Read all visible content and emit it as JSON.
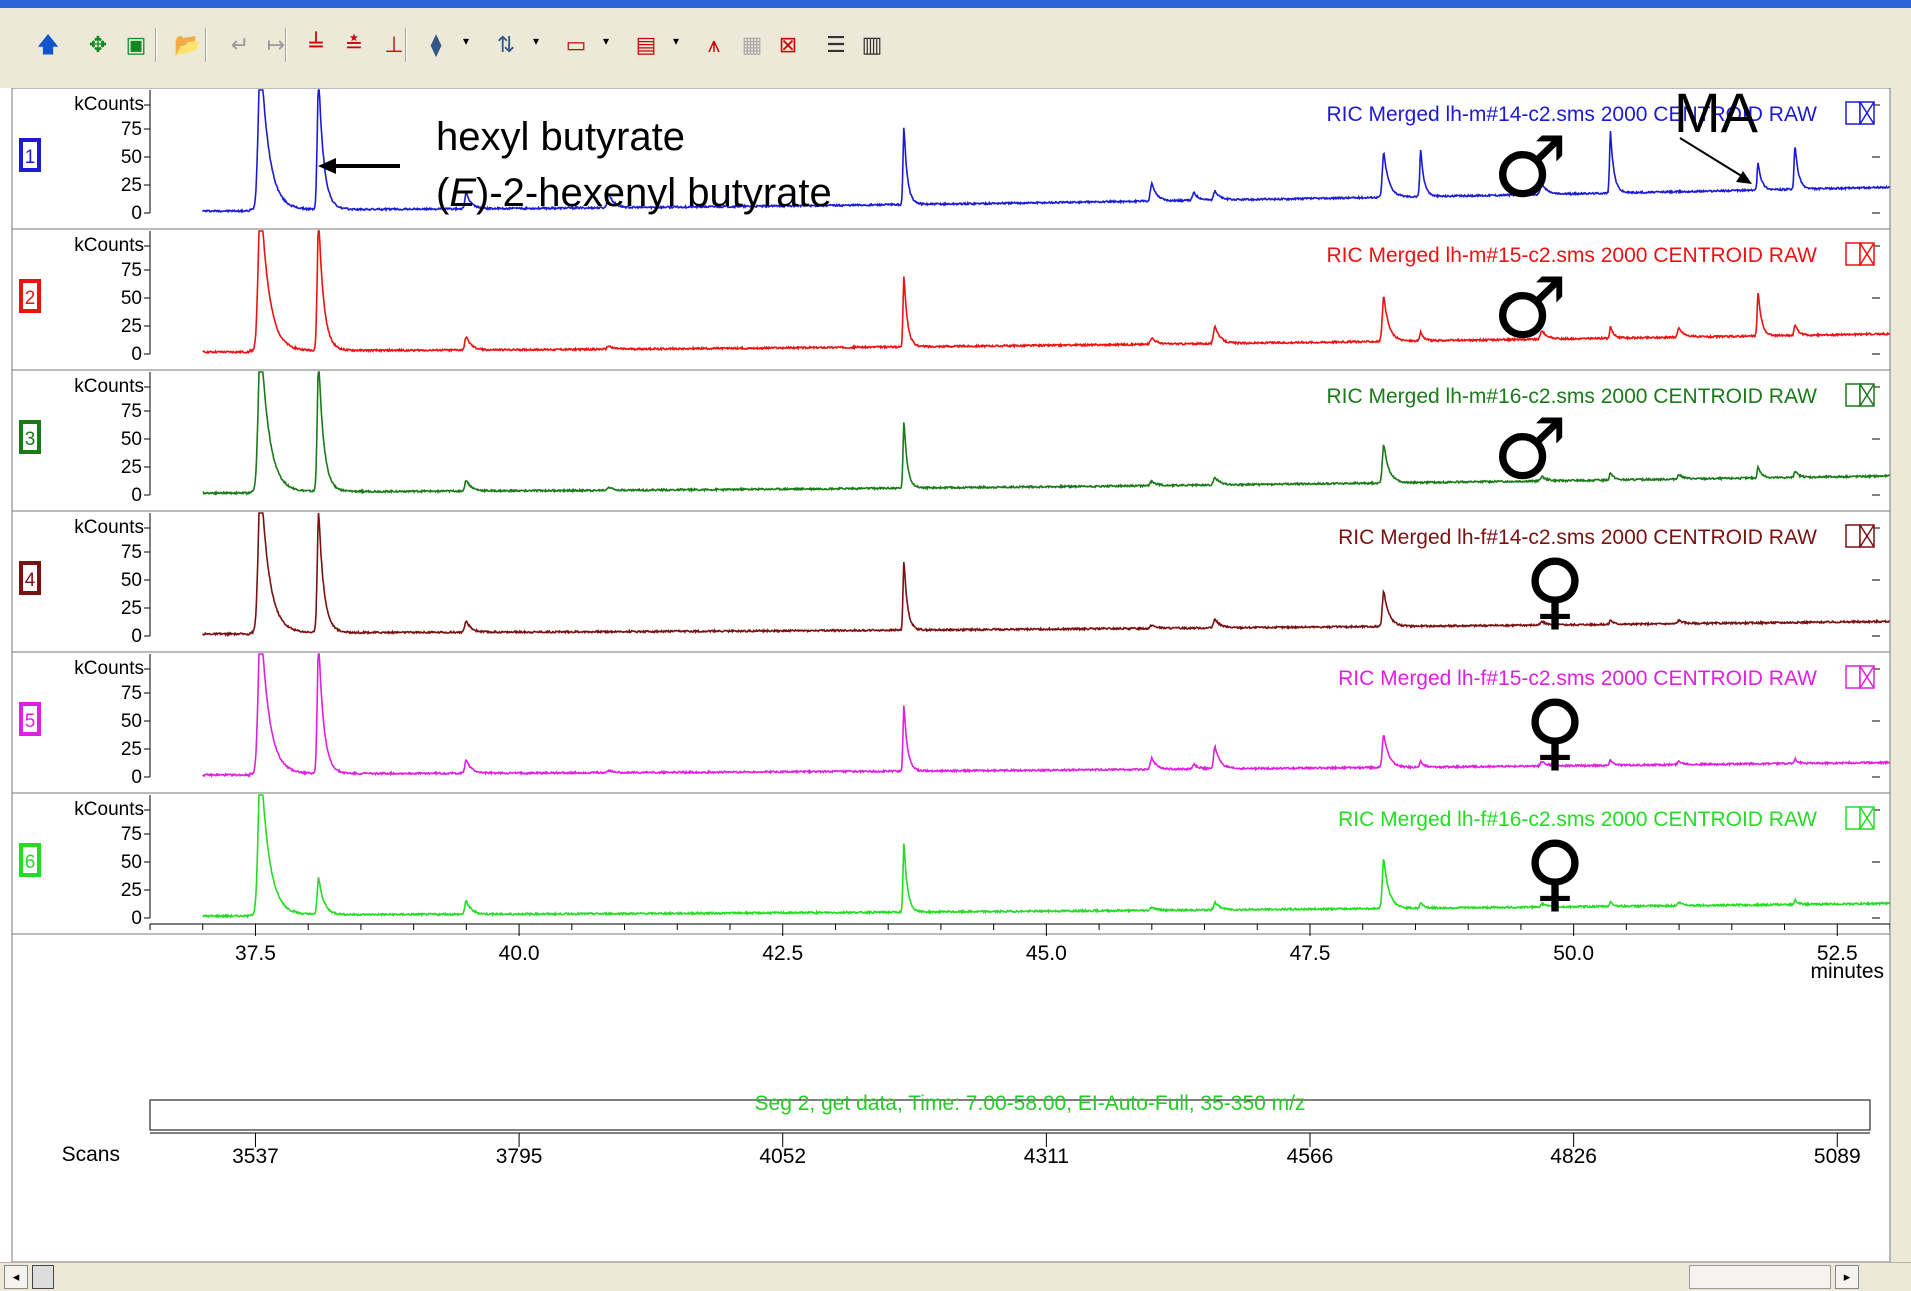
{
  "toolbar": {
    "buttons": [
      {
        "icon": "up-arrow-icon",
        "glyph": "🡅",
        "color": "#1155cc",
        "drop": false
      },
      {
        "icon": "move-icon",
        "glyph": "✥",
        "color": "#118822",
        "drop": false
      },
      {
        "icon": "zoom-box-icon",
        "glyph": "▣",
        "color": "#118822",
        "drop": false
      },
      {
        "icon": "open-folder-icon",
        "glyph": "📂",
        "color": "#cc9900",
        "drop": false
      },
      {
        "icon": "undo-icon",
        "glyph": "↵",
        "color": "#999999",
        "drop": false
      },
      {
        "icon": "redo-icon",
        "glyph": "↦",
        "color": "#999999",
        "drop": false
      },
      {
        "icon": "peak-marker-icon",
        "glyph": "╧",
        "color": "#cc0000",
        "drop": false
      },
      {
        "icon": "baseline-icon",
        "glyph": "≛",
        "color": "#cc0000",
        "drop": false
      },
      {
        "icon": "integrate-icon",
        "glyph": "⊥",
        "color": "#cc0000",
        "drop": false
      },
      {
        "icon": "probe-icon",
        "glyph": "⧫",
        "color": "#335588",
        "drop": true
      },
      {
        "icon": "spectrum-icon",
        "glyph": "⇅",
        "color": "#335588",
        "drop": true
      },
      {
        "icon": "scale-icon",
        "glyph": "▭",
        "color": "#cc0000",
        "drop": true
      },
      {
        "icon": "overlay-icon",
        "glyph": "▤",
        "color": "#cc0000",
        "drop": true
      },
      {
        "icon": "peak-icon",
        "glyph": "⩚",
        "color": "#cc0000",
        "drop": false
      },
      {
        "icon": "grid-icon",
        "glyph": "▦",
        "color": "#aaaaaa",
        "drop": false
      },
      {
        "icon": "no-zoom-icon",
        "glyph": "⊠",
        "color": "#cc0000",
        "drop": false
      },
      {
        "icon": "list-icon",
        "glyph": "☰",
        "color": "#333333",
        "drop": false
      },
      {
        "icon": "table-icon",
        "glyph": "▥",
        "color": "#333333",
        "drop": false
      }
    ]
  },
  "chart_data": {
    "type": "line",
    "x_unit": "minutes",
    "xlim": [
      36.5,
      53.0
    ],
    "x_ticks": [
      "37.5",
      "40.0",
      "42.5",
      "45.0",
      "47.5",
      "50.0",
      "52.5"
    ],
    "x_tick_values": [
      37.5,
      40.0,
      42.5,
      45.0,
      47.5,
      50.0,
      52.5
    ],
    "y_unit": "kCounts",
    "y_ticks": [
      "75",
      "50",
      "25",
      "0"
    ],
    "y_tick_values": [
      75,
      50,
      25,
      0
    ],
    "ylim": [
      0,
      105
    ],
    "segment_label": "Seg 2, get data, Time:  7.00-58.00, EI-Auto-Full, 35-350 m/z",
    "scans_label": "Scans",
    "scan_ticks": [
      "3537",
      "3795",
      "4052",
      "4311",
      "4566",
      "4826",
      "5089"
    ],
    "scan_tick_x": [
      37.5,
      40.0,
      42.5,
      45.0,
      47.5,
      50.0,
      52.5
    ],
    "annotation": {
      "line1": "hexyl butyrate",
      "line2_pre": "(",
      "line2_italic": "E",
      "line2_post": ")-2-hexenyl butyrate"
    },
    "ma_label": "MA",
    "male_symbol": "♂",
    "female_symbol": "♀",
    "series": [
      {
        "panel": "1",
        "name": "RIC Merged lh-m#14-c2.sms  2000 CENTROID RAW",
        "color": "#1b1bd6",
        "sex": "male",
        "baseline": 3,
        "drift": 20,
        "peaks": [
          [
            37.55,
            140,
            0.05
          ],
          [
            38.1,
            120,
            0.03
          ],
          [
            39.5,
            14,
            0.03
          ],
          [
            40.85,
            13,
            0.03
          ],
          [
            43.65,
            70,
            0.02
          ],
          [
            46.0,
            16,
            0.03
          ],
          [
            46.4,
            7,
            0.03
          ],
          [
            46.6,
            8,
            0.03
          ],
          [
            48.2,
            40,
            0.03
          ],
          [
            48.55,
            42,
            0.02
          ],
          [
            49.7,
            10,
            0.03
          ],
          [
            50.35,
            55,
            0.02
          ],
          [
            51.75,
            25,
            0.02
          ],
          [
            52.1,
            40,
            0.02
          ]
        ]
      },
      {
        "panel": "2",
        "name": "RIC Merged lh-m#15-c2.sms  2000 CENTROID RAW",
        "color": "#ee1111",
        "sex": "male",
        "baseline": 3,
        "drift": 15,
        "peaks": [
          [
            37.55,
            140,
            0.05
          ],
          [
            38.1,
            120,
            0.03
          ],
          [
            39.5,
            12,
            0.03
          ],
          [
            40.85,
            3,
            0.03
          ],
          [
            43.65,
            65,
            0.02
          ],
          [
            46.0,
            6,
            0.03
          ],
          [
            46.6,
            16,
            0.03
          ],
          [
            48.2,
            40,
            0.03
          ],
          [
            48.55,
            8,
            0.02
          ],
          [
            49.7,
            8,
            0.03
          ],
          [
            50.35,
            10,
            0.02
          ],
          [
            51.0,
            8,
            0.03
          ],
          [
            51.75,
            40,
            0.02
          ],
          [
            52.1,
            10,
            0.02
          ]
        ]
      },
      {
        "panel": "3",
        "name": "RIC Merged lh-m#16-c2.sms  2000 CENTROID RAW",
        "color": "#1a7a1a",
        "sex": "male",
        "baseline": 3,
        "drift": 14,
        "peaks": [
          [
            37.55,
            140,
            0.05
          ],
          [
            38.1,
            120,
            0.03
          ],
          [
            39.5,
            10,
            0.03
          ],
          [
            40.85,
            3,
            0.03
          ],
          [
            43.65,
            60,
            0.02
          ],
          [
            46.0,
            4,
            0.03
          ],
          [
            46.6,
            7,
            0.03
          ],
          [
            48.2,
            35,
            0.03
          ],
          [
            49.7,
            4,
            0.03
          ],
          [
            50.35,
            7,
            0.02
          ],
          [
            51.0,
            4,
            0.03
          ],
          [
            51.75,
            10,
            0.02
          ],
          [
            52.1,
            6,
            0.02
          ]
        ]
      },
      {
        "panel": "4",
        "name": "RIC Merged lh-f#14-c2.sms  2000 CENTROID RAW",
        "color": "#7a1010",
        "sex": "female",
        "baseline": 3,
        "drift": 10,
        "peaks": [
          [
            37.55,
            140,
            0.05
          ],
          [
            38.1,
            110,
            0.03
          ],
          [
            39.5,
            10,
            0.03
          ],
          [
            43.65,
            63,
            0.02
          ],
          [
            46.0,
            3,
            0.03
          ],
          [
            46.6,
            8,
            0.03
          ],
          [
            48.2,
            32,
            0.03
          ],
          [
            49.7,
            3,
            0.03
          ],
          [
            50.35,
            4,
            0.02
          ],
          [
            51.0,
            3,
            0.03
          ]
        ]
      },
      {
        "panel": "5",
        "name": "RIC Merged lh-f#15-c2.sms  2000 CENTROID RAW",
        "color": "#e020e0",
        "sex": "female",
        "baseline": 3,
        "drift": 10,
        "peaks": [
          [
            37.55,
            140,
            0.05
          ],
          [
            38.1,
            120,
            0.03
          ],
          [
            39.5,
            12,
            0.03
          ],
          [
            40.85,
            2,
            0.03
          ],
          [
            43.65,
            60,
            0.02
          ],
          [
            46.0,
            10,
            0.03
          ],
          [
            46.4,
            4,
            0.03
          ],
          [
            46.6,
            20,
            0.03
          ],
          [
            48.2,
            30,
            0.03
          ],
          [
            48.55,
            5,
            0.02
          ],
          [
            49.7,
            4,
            0.03
          ],
          [
            50.35,
            5,
            0.02
          ],
          [
            51.0,
            3,
            0.03
          ],
          [
            52.1,
            4,
            0.02
          ]
        ]
      },
      {
        "panel": "6",
        "name": "RIC Merged lh-f#16-c2.sms  2000 CENTROID RAW",
        "color": "#22dd22",
        "sex": "female",
        "baseline": 3,
        "drift": 10,
        "peaks": [
          [
            37.55,
            140,
            0.05
          ],
          [
            38.1,
            33,
            0.03
          ],
          [
            39.5,
            12,
            0.03
          ],
          [
            43.65,
            62,
            0.02
          ],
          [
            46.0,
            3,
            0.03
          ],
          [
            46.6,
            7,
            0.03
          ],
          [
            48.2,
            45,
            0.03
          ],
          [
            48.55,
            5,
            0.02
          ],
          [
            49.7,
            3,
            0.03
          ],
          [
            50.35,
            4,
            0.02
          ],
          [
            51.0,
            3,
            0.03
          ],
          [
            52.1,
            4,
            0.02
          ]
        ]
      }
    ]
  }
}
